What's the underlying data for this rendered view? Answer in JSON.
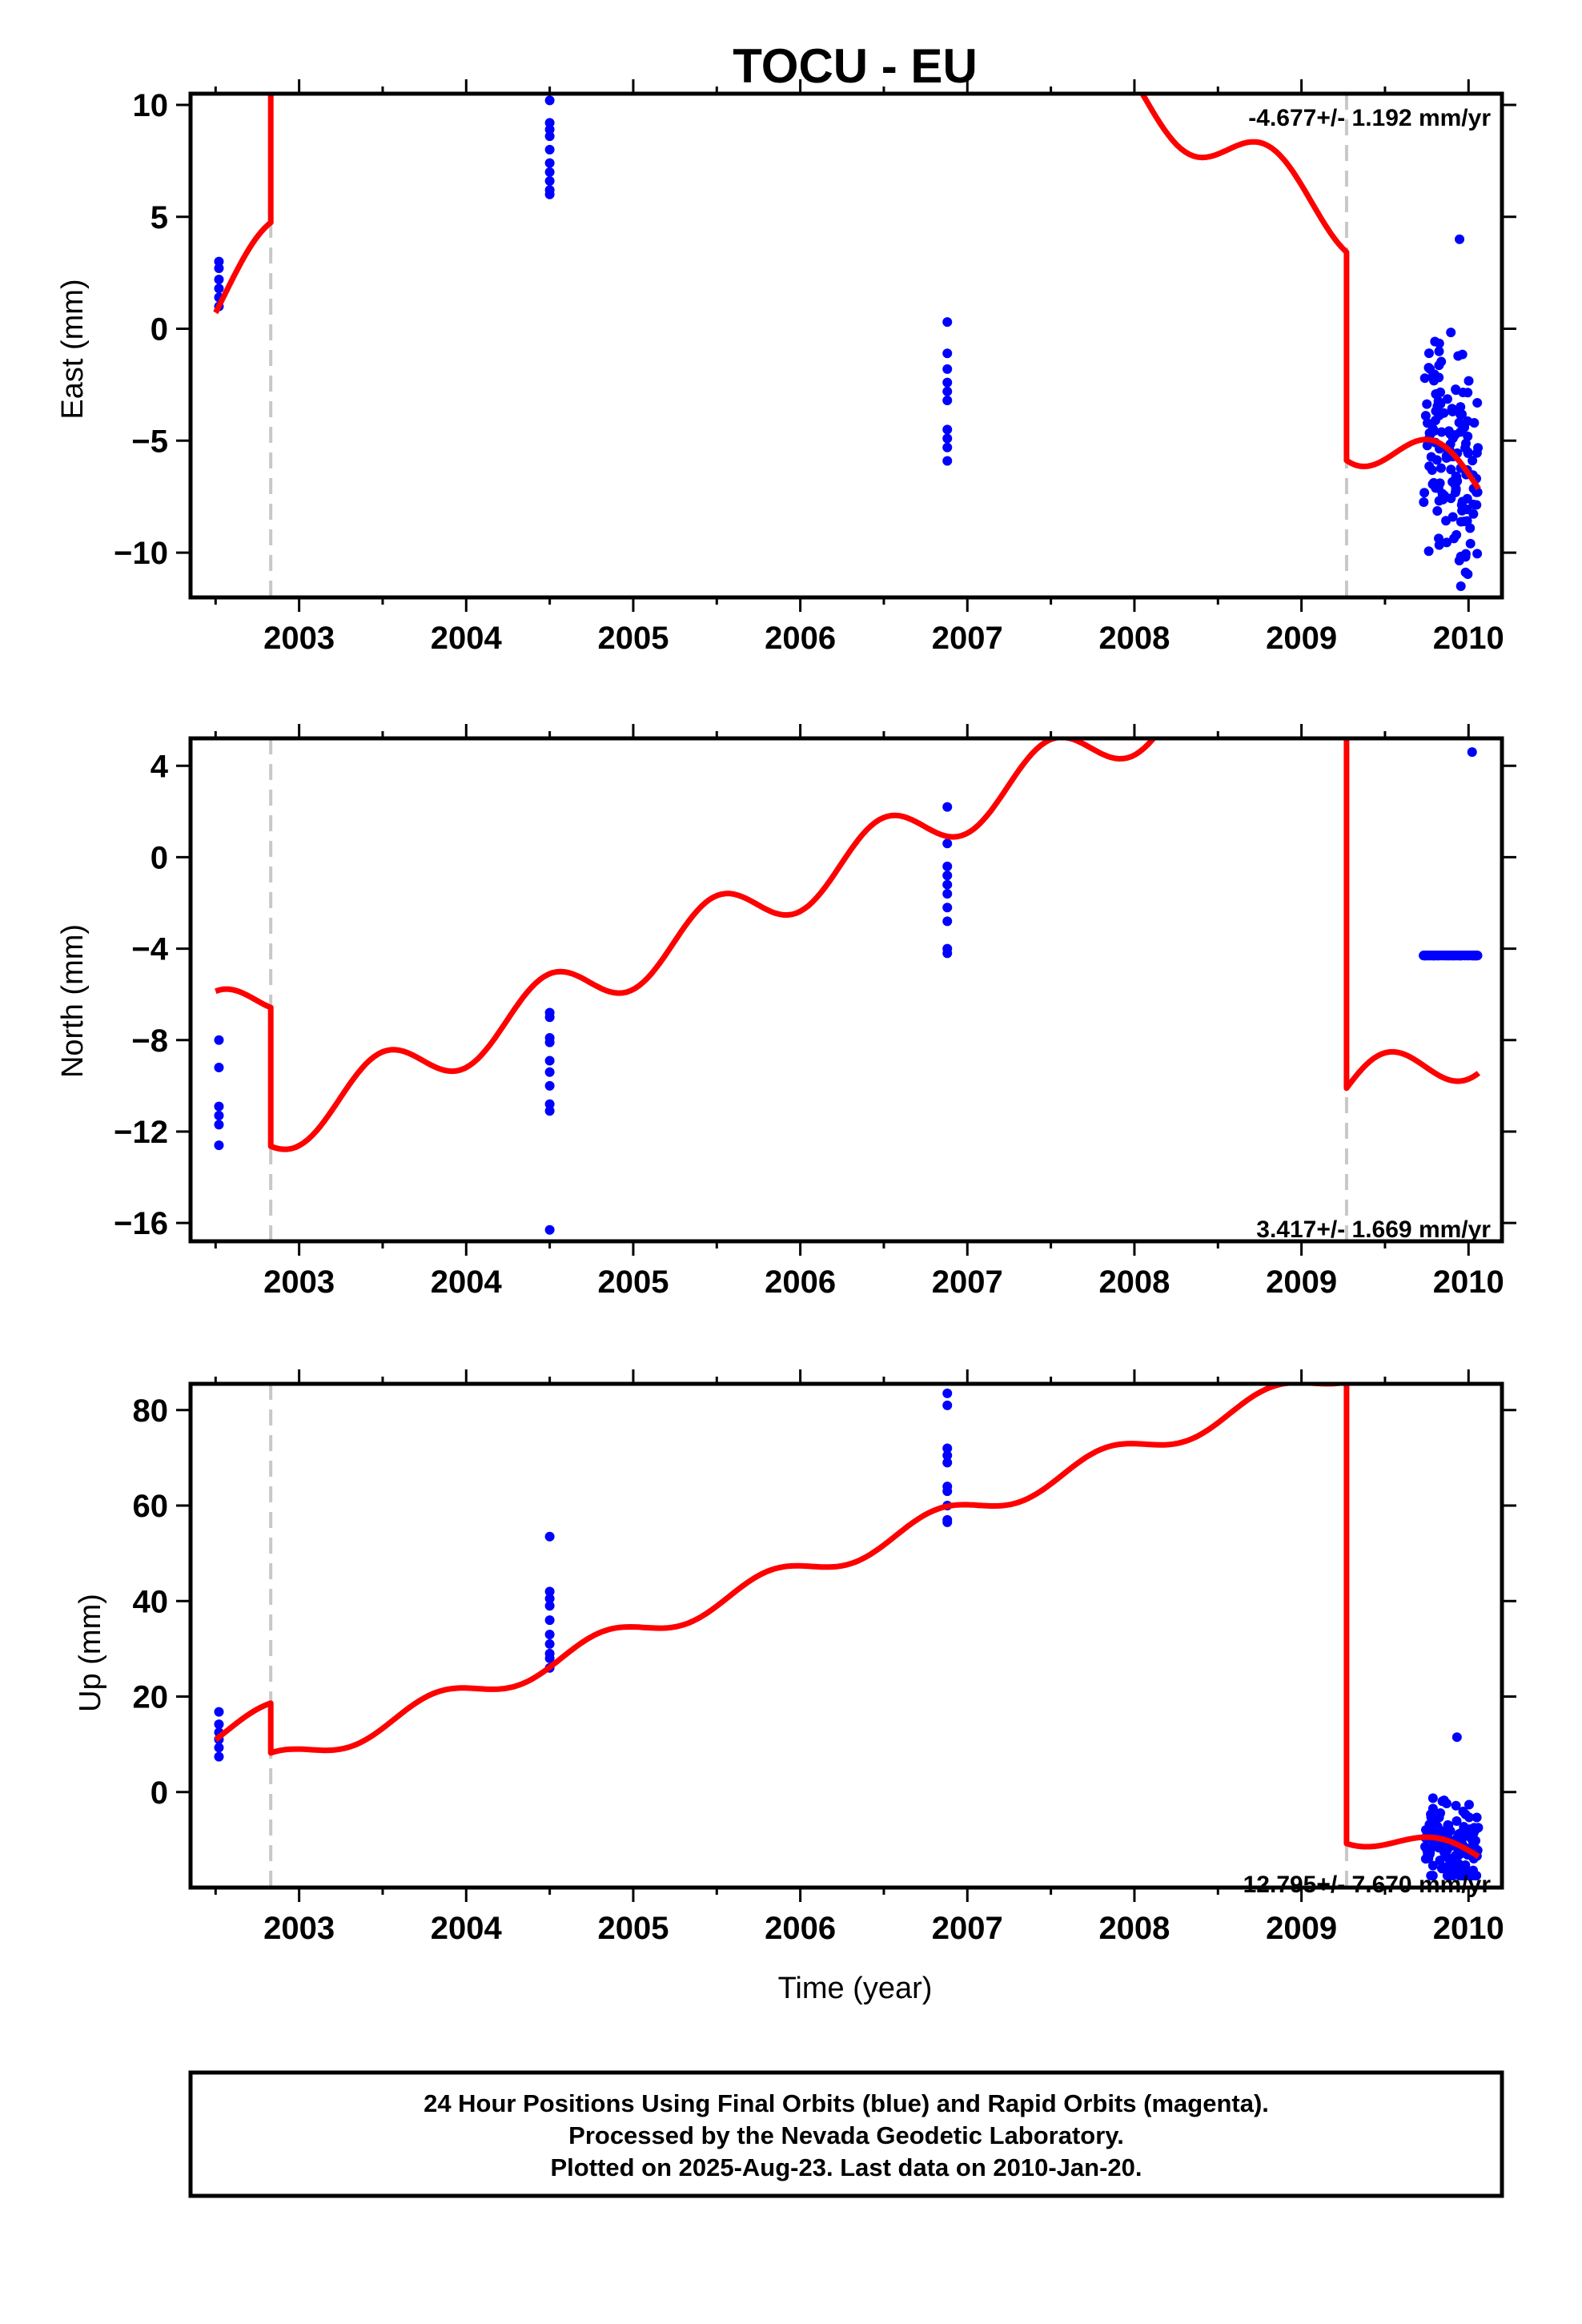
{
  "title": "TOCU - EU",
  "xlabel": "Time (year)",
  "footer": {
    "line1": "24 Hour Positions Using Final Orbits (blue) and Rapid Orbits (magenta).",
    "line2": "Processed by the Nevada Geodetic Laboratory.",
    "line3": "Plotted on 2025-Aug-23. Last data on 2010-Jan-20."
  },
  "colors": {
    "data": "#0000ff",
    "model": "#ff0000",
    "offset": "#c8c8c8",
    "frame": "#000000"
  },
  "chart_data": [
    {
      "type": "scatter",
      "ylabel": "East (mm)",
      "rate_label": "-4.677+/- 1.192 mm/yr",
      "xlim": [
        2002.35,
        2010.2
      ],
      "ylim": [
        -12,
        10.5
      ],
      "x_ticks": [
        2003,
        2004,
        2005,
        2006,
        2007,
        2008,
        2009,
        2010
      ],
      "y_ticks": [
        10,
        5,
        0,
        -5,
        -10
      ],
      "y_tick_labels": [
        "10",
        "5",
        "0",
        "−5",
        "−10"
      ],
      "offsets": [
        2002.83,
        2009.27
      ],
      "clusters": [
        {
          "x": 2002.52,
          "y": [
            3.0,
            2.7,
            2.2,
            1.8,
            1.4,
            1.0
          ]
        },
        {
          "x": 2004.5,
          "y": [
            10.2,
            9.2,
            8.9,
            8.6,
            8.0,
            7.4,
            7.0,
            6.6,
            6.2,
            6.0
          ]
        },
        {
          "x": 2006.88,
          "y": [
            0.3,
            -1.1,
            -1.8,
            -2.4,
            -2.8,
            -3.2,
            -4.5,
            -4.9,
            -5.3,
            -5.9
          ]
        }
      ],
      "late_cluster": {
        "x0": 2009.73,
        "x1": 2010.06,
        "ymin": -11.5,
        "ymax": 4.0,
        "n": 150
      },
      "model": {
        "segments": [
          {
            "x0": 2002.5,
            "x1": 2002.83,
            "a": 1.2,
            "b": 6.83,
            "amp": 1.3,
            "ph": 0.56
          },
          {
            "x0": 2002.83,
            "x1": 2009.27,
            "a": 34.8,
            "b": -4.677,
            "amp": 1.3,
            "ph": 0.56
          },
          {
            "x0": 2009.27,
            "x1": 2010.06,
            "a": -4.62,
            "b": -3.2,
            "amp": 1.3,
            "ph": 0.56
          }
        ]
      }
    },
    {
      "type": "scatter",
      "ylabel": "North (mm)",
      "rate_label": "3.417+/- 1.669 mm/yr",
      "xlim": [
        2002.35,
        2010.2
      ],
      "ylim": [
        -16.8,
        5.2
      ],
      "x_ticks": [
        2003,
        2004,
        2005,
        2006,
        2007,
        2008,
        2009,
        2010
      ],
      "y_ticks": [
        4,
        0,
        -4,
        -8,
        -12,
        -16
      ],
      "y_tick_labels": [
        "4",
        "0",
        "−4",
        "−8",
        "−12",
        "−16"
      ],
      "offsets": [
        2002.83,
        2009.27
      ],
      "clusters": [
        {
          "x": 2002.52,
          "y": [
            -8.0,
            -9.2,
            -10.9,
            -11.3,
            -11.7,
            -12.6
          ]
        },
        {
          "x": 2004.5,
          "y": [
            -6.8,
            -7.0,
            -7.9,
            -8.1,
            -8.9,
            -9.4,
            -10.0,
            -10.8,
            -11.1,
            -16.3
          ]
        },
        {
          "x": 2006.88,
          "y": [
            2.2,
            0.6,
            -0.4,
            -0.8,
            -1.2,
            -1.6,
            -2.2,
            -2.8,
            -4.0,
            -4.2
          ]
        }
      ],
      "late_cluster": {
        "x0": 2009.73,
        "x1": 2010.06,
        "ymin": -4.3,
        "ymax": 4.6,
        "n": 150
      },
      "model": {
        "segments": [
          {
            "x0": 2002.5,
            "x1": 2002.83,
            "a": -7.06,
            "b": 3.417,
            "amp": 1.2,
            "ph": 0.24
          },
          {
            "x0": 2002.83,
            "x1": 2009.27,
            "a": -12.0,
            "b": 3.417,
            "amp": 1.2,
            "ph": 0.24
          },
          {
            "x0": 2009.27,
            "x1": 2010.06,
            "a": -10.33,
            "b": 2.5,
            "amp": 1.2,
            "ph": 0.24
          }
        ]
      }
    },
    {
      "type": "scatter",
      "ylabel": "Up (mm)",
      "rate_label": "12.795+/- 7.670 mm/yr",
      "xlim": [
        2002.35,
        2010.2
      ],
      "ylim": [
        -20,
        85.5
      ],
      "x_ticks": [
        2003,
        2004,
        2005,
        2006,
        2007,
        2008,
        2009,
        2010
      ],
      "y_ticks": [
        80,
        60,
        40,
        20,
        0
      ],
      "y_tick_labels": [
        "80",
        "60",
        "40",
        "20",
        "0"
      ],
      "offsets": [
        2002.83,
        2009.27
      ],
      "clusters": [
        {
          "x": 2002.52,
          "y": [
            16.8,
            14.2,
            12.5,
            11.0,
            9.3,
            7.4
          ]
        },
        {
          "x": 2004.5,
          "y": [
            53.5,
            42.0,
            40.5,
            39.0,
            36.0,
            33.0,
            31.0,
            29.0,
            28.0,
            26.0
          ]
        },
        {
          "x": 2006.88,
          "y": [
            83.5,
            81.0,
            72.0,
            70.5,
            69.0,
            64.0,
            63.0,
            60.0,
            57.0,
            56.5
          ]
        }
      ],
      "late_cluster": {
        "x0": 2009.73,
        "x1": 2010.06,
        "ymin": -17.5,
        "ymax": 11.5,
        "n": 150
      },
      "model": {
        "segments": [
          {
            "x0": 2002.5,
            "x1": 2002.83,
            "a": 12.0,
            "b": 12.795,
            "amp": 2.4,
            "ph": 0.57
          },
          {
            "x0": 2002.83,
            "x1": 2009.27,
            "a": 5.8,
            "b": 12.795,
            "amp": 2.4,
            "ph": 0.57
          },
          {
            "x0": 2009.27,
            "x1": 2010.06,
            "a": -8.5,
            "b": -6.5,
            "amp": 2.4,
            "ph": 0.57
          }
        ]
      }
    }
  ]
}
